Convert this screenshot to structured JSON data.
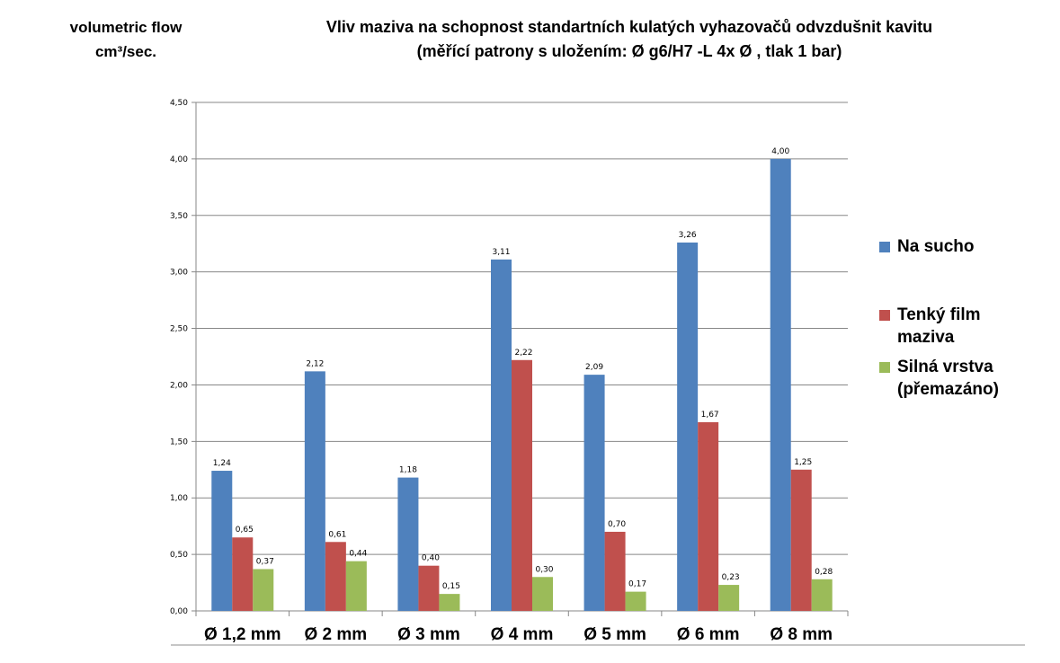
{
  "header": {
    "ylabel_line1": "volumetric flow",
    "ylabel_line2": "cm³/sec.",
    "title_line1": "Vliv maziva na  schopnost standartních  kulatých vyhazovačů odvzdušnit kavitu",
    "title_line2": "(měřící patrony s uložením: Ø g6/H7 -L 4x Ø , tlak 1 bar)"
  },
  "colors": {
    "na_sucho": "#4f81bd",
    "tenky_film": "#c0504d",
    "silna_vrstva": "#9bbb59",
    "grid": "#878787",
    "axis": "#878787"
  },
  "legend": [
    {
      "label_line1": "Na sucho",
      "label_line2": ""
    },
    {
      "label_line1": "Tenký film",
      "label_line2": "maziva"
    },
    {
      "label_line1": "Silná vrstva",
      "label_line2": "(přemazáno)"
    }
  ],
  "chart_data": {
    "type": "bar",
    "title": "Vliv maziva na schopnost standartních kulatých vyhazovačů odvzdušnit kavitu (měřící patrony s uložením: Ø g6/H7 -L 4x Ø , tlak 1 bar)",
    "xlabel": "",
    "ylabel": "volumetric flow cm³/sec.",
    "categories": [
      "Ø 1,2 mm",
      "Ø 2 mm",
      "Ø 3 mm",
      "Ø 4 mm",
      "Ø 5 mm",
      "Ø 6 mm",
      "Ø 8 mm"
    ],
    "series": [
      {
        "name": "Na sucho",
        "values": [
          1.24,
          2.12,
          1.18,
          3.11,
          2.09,
          3.26,
          4.0
        ]
      },
      {
        "name": "Tenký film maziva",
        "values": [
          0.65,
          0.61,
          0.4,
          2.22,
          0.7,
          1.67,
          1.25
        ]
      },
      {
        "name": "Silná vrstva (přemazáno)",
        "values": [
          0.37,
          0.44,
          0.15,
          0.3,
          0.17,
          0.23,
          0.28
        ]
      }
    ],
    "ylim": [
      0,
      4.5
    ],
    "yticks": [
      "0,00",
      "0,50",
      "1,00",
      "1,50",
      "2,00",
      "2,50",
      "3,00",
      "3,50",
      "4,00",
      "4,50"
    ],
    "grid": true,
    "legend_position": "right",
    "data_labels": true,
    "decimal_separator": ","
  }
}
